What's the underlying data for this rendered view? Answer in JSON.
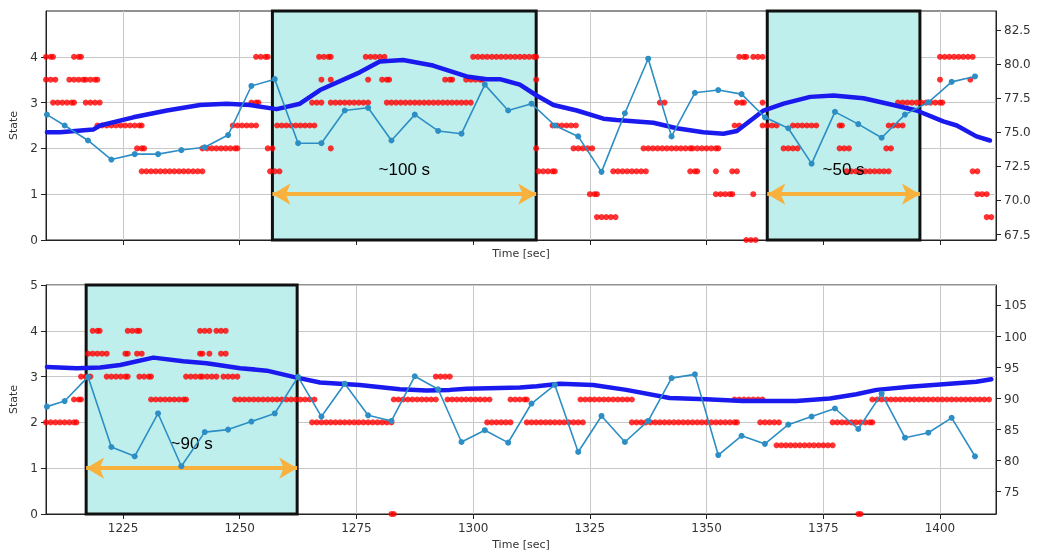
{
  "chart_data": [
    {
      "type": "scatter",
      "xlabel": "Time [sec]",
      "ylabel": "State",
      "xlim": [
        1208.5,
        1412
      ],
      "xticks": [
        1225,
        1250,
        1275,
        1300,
        1325,
        1350,
        1375,
        1400
      ],
      "ylim": [
        0,
        5
      ],
      "yticks": [
        0,
        1,
        2,
        3,
        4
      ],
      "y2lim": [
        67.1,
        83.9
      ],
      "y2ticks": [
        67.5,
        {
          "value": 70,
          "label": "70.0"
        },
        72.5,
        {
          "value": 75,
          "label": "75.0"
        },
        77.5,
        {
          "value": 80,
          "label": "80.0"
        },
        82.5
      ],
      "tick_labels": "y",
      "grid": true,
      "bands": [
        {
          "axis": "x",
          "from": 1257,
          "to": 1313.5,
          "color": "#bfefec"
        },
        {
          "axis": "x",
          "from": 1363,
          "to": 1395.7,
          "color": "#bfefec"
        }
      ],
      "annotations": [
        "~100 s",
        "~50 s"
      ],
      "series": [
        {
          "type": "scatter",
          "color": "#ff0000",
          "marker": "circle",
          "x": [
            1208.5,
            1209.5,
            1210,
            1214.5,
            1215.5,
            1216,
            1253.5,
            1254.5,
            1255.5,
            1256,
            1267,
            1268,
            1269,
            1269.5,
            1277,
            1278,
            1279,
            1280,
            1281,
            1300,
            1301,
            1302,
            1303,
            1304,
            1305,
            1306,
            1307,
            1308,
            1309,
            1310,
            1311,
            1312,
            1313,
            1313.5,
            1357,
            1358,
            1358.5,
            1360,
            1361,
            1362,
            1400,
            1401,
            1402,
            1403,
            1404,
            1405,
            1406,
            1407,
            1208.5,
            1209.5,
            1210.5,
            1213.5,
            1214.5,
            1215.5,
            1216.5,
            1217,
            1218,
            1219,
            1219.5,
            1267.5,
            1269.5,
            1277.5,
            1280.5,
            1281.5,
            1282,
            1294,
            1295,
            1295.5,
            1298.5,
            1299.5,
            1300.5,
            1301.5,
            1302,
            1313.5,
            1400,
            1406.5,
            1210,
            1211,
            1212,
            1213,
            1214,
            1214.5,
            1217,
            1218,
            1219,
            1220,
            1252.5,
            1253.5,
            1254,
            1265.5,
            1266.5,
            1267.5,
            1269.5,
            1270.5,
            1271.5,
            1272.5,
            1273.5,
            1274.5,
            1275.5,
            1276.5,
            1277.5,
            1281.5,
            1282.5,
            1283.5,
            1284.5,
            1285.5,
            1286.5,
            1287.5,
            1288.5,
            1289.5,
            1290.5,
            1291.5,
            1292.5,
            1293.5,
            1294.5,
            1295.5,
            1296.5,
            1297.5,
            1298.5,
            1299.5,
            1340,
            1341,
            1356.5,
            1357.5,
            1358,
            1362,
            1391,
            1392,
            1393,
            1394,
            1395,
            1396,
            1397,
            1398,
            1399,
            1400,
            1400.5,
            1219.5,
            1220.5,
            1221.5,
            1222.5,
            1223.5,
            1224.5,
            1225.5,
            1226.5,
            1227.5,
            1228.5,
            1229,
            1248.5,
            1249.5,
            1250.5,
            1251.5,
            1252.5,
            1253.5,
            1258,
            1259,
            1260,
            1261,
            1262,
            1263,
            1264,
            1265,
            1266,
            1317,
            1318,
            1319,
            1320,
            1321,
            1322,
            1356,
            1357,
            1362,
            1363,
            1364,
            1365,
            1368.5,
            1369.5,
            1370.5,
            1371.5,
            1372.5,
            1373.5,
            1378.5,
            1379,
            1389,
            1390,
            1391,
            1392,
            1228,
            1229,
            1229.5,
            1242,
            1243,
            1244,
            1245,
            1246,
            1247,
            1248,
            1249,
            1249.5,
            1256,
            1257,
            1269.5,
            1313.5,
            1321.5,
            1322.5,
            1323.5,
            1324.5,
            1325.5,
            1336.5,
            1337.5,
            1338.5,
            1339.5,
            1340.5,
            1341.5,
            1342.5,
            1343.5,
            1344.5,
            1345.5,
            1346.5,
            1347,
            1348,
            1349,
            1350,
            1351,
            1352,
            1352.5,
            1366.5,
            1367.5,
            1368.5,
            1369.5,
            1378.5,
            1379.5,
            1380.5,
            1388.5,
            1389.5,
            1229,
            1230,
            1231,
            1232,
            1233,
            1234,
            1235,
            1236,
            1237,
            1238,
            1239,
            1240,
            1241,
            1242,
            1256.5,
            1257.5,
            1258.5,
            1314,
            1315,
            1316,
            1317,
            1317.5,
            1330,
            1331,
            1332,
            1333,
            1334,
            1335,
            1336,
            1337,
            1346.5,
            1347.5,
            1348,
            1352,
            1355.5,
            1356.5,
            1380,
            1381,
            1382,
            1383,
            1384,
            1385,
            1386,
            1387,
            1388,
            1389,
            1407,
            1408,
            1325,
            1326,
            1326.5,
            1352,
            1353,
            1354,
            1355,
            1355.5,
            1360,
            1408,
            1409,
            1410,
            1326.5,
            1327.5,
            1328.5,
            1329.5,
            1330.5,
            1410,
            1411,
            1358.5,
            1359.5,
            1360.5
          ],
          "values": [
            4,
            4,
            4,
            4,
            4,
            4,
            4,
            4,
            4,
            4,
            4,
            4,
            4,
            4,
            4,
            4,
            4,
            4,
            4,
            4,
            4,
            4,
            4,
            4,
            4,
            4,
            4,
            4,
            4,
            4,
            4,
            4,
            4,
            4,
            4,
            4,
            4,
            4,
            4,
            4,
            4,
            4,
            4,
            4,
            4,
            4,
            4,
            4,
            3.5,
            3.5,
            3.5,
            3.5,
            3.5,
            3.5,
            3.5,
            3.5,
            3.5,
            3.5,
            3.5,
            3.5,
            3.5,
            3.5,
            3.5,
            3.5,
            3.5,
            3.5,
            3.5,
            3.5,
            3.5,
            3.5,
            3.5,
            3.5,
            3.5,
            3.5,
            3.5,
            3.5,
            3,
            3,
            3,
            3,
            3,
            3,
            3,
            3,
            3,
            3,
            3,
            3,
            3,
            3,
            3,
            3,
            3,
            3,
            3,
            3,
            3,
            3,
            3,
            3,
            3,
            3,
            3,
            3,
            3,
            3,
            3,
            3,
            3,
            3,
            3,
            3,
            3,
            3,
            3,
            3,
            3,
            3,
            3,
            3,
            3,
            3,
            3,
            3,
            3,
            3,
            3,
            3,
            3,
            3,
            3,
            3,
            3,
            3,
            3,
            3,
            3,
            2.5,
            2.5,
            2.5,
            2.5,
            2.5,
            2.5,
            2.5,
            2.5,
            2.5,
            2.5,
            2.5,
            2.5,
            2.5,
            2.5,
            2.5,
            2.5,
            2.5,
            2.5,
            2.5,
            2.5,
            2.5,
            2.5,
            2.5,
            2.5,
            2.5,
            2.5,
            2.5,
            2.5,
            2.5,
            2.5,
            2.5,
            2.5,
            2.5,
            2.5,
            2.5,
            2.5,
            2.5,
            2.5,
            2.5,
            2.5,
            2.5,
            2.5,
            2.5,
            2.5,
            2.5,
            2.5,
            2.5,
            2.5,
            2.5,
            2.5,
            2,
            2,
            2,
            2,
            2,
            2,
            2,
            2,
            2,
            2,
            2,
            2,
            2,
            2,
            2,
            2,
            2,
            2,
            2,
            2,
            2,
            2,
            2,
            2,
            2,
            2,
            2,
            2,
            2,
            2,
            2,
            2,
            2,
            2,
            2,
            2,
            2,
            2,
            2,
            2,
            2,
            2,
            2,
            2,
            2,
            2,
            2,
            2,
            1.5,
            1.5,
            1.5,
            1.5,
            1.5,
            1.5,
            1.5,
            1.5,
            1.5,
            1.5,
            1.5,
            1.5,
            1.5,
            1.5,
            1.5,
            1.5,
            1.5,
            1.5,
            1.5,
            1.5,
            1.5,
            1.5,
            1.5,
            1.5,
            1.5,
            1.5,
            1.5,
            1.5,
            1.5,
            1.5,
            1.5,
            1.5,
            1.5,
            1.5,
            1.5,
            1.5,
            1.5,
            1.5,
            1.5,
            1.5,
            1.5,
            1.5,
            1.5,
            1.5,
            1.5,
            1.5,
            1.5,
            1.5,
            1,
            1,
            1,
            1,
            1,
            1,
            1,
            1,
            1,
            1,
            1,
            1,
            0.5,
            0.5,
            0.5,
            0.5,
            0.5,
            0.5,
            0.5,
            0,
            0,
            0
          ]
        },
        {
          "type": "line",
          "color": "#1a1aee",
          "axis": "y2",
          "marker": "none",
          "x": [
            1208.7,
            1211.5,
            1218.6,
            1220.1,
            1227.2,
            1234.4,
            1241.5,
            1247.2,
            1252.2,
            1257.9,
            1262.9,
            1267.2,
            1275.7,
            1280,
            1285,
            1291.4,
            1298.6,
            1302.9,
            1305.7,
            1310,
            1313.6,
            1317.2,
            1322.2,
            1327.9,
            1330.7,
            1338.6,
            1343.6,
            1349.3,
            1353.6,
            1356.5,
            1362.2,
            1366.5,
            1372.2,
            1377.2,
            1383.6,
            1390,
            1395,
            1400.7,
            1403.6,
            1407.8,
            1410.7
          ],
          "values": [
            75.0,
            75.0,
            75.2,
            75.5,
            76.1,
            76.6,
            77.0,
            77.1,
            77.0,
            76.7,
            77.1,
            78.1,
            79.4,
            80.2,
            80.3,
            79.9,
            79.1,
            78.9,
            78.9,
            78.5,
            77.7,
            77.0,
            76.6,
            76.0,
            75.9,
            75.7,
            75.3,
            75.0,
            74.9,
            75.1,
            76.6,
            77.1,
            77.6,
            77.7,
            77.5,
            77.0,
            76.6,
            75.8,
            75.5,
            74.7,
            74.4
          ]
        },
        {
          "type": "line",
          "color": "#2c8ec4",
          "axis": "y2",
          "marker": "circle",
          "x": [
            1208.7,
            1212.5,
            1217.5,
            1222.5,
            1227.5,
            1232.5,
            1237.5,
            1242.5,
            1247.5,
            1252.5,
            1257.5,
            1262.5,
            1267.5,
            1272.5,
            1277.5,
            1282.5,
            1287.5,
            1292.5,
            1297.5,
            1302.5,
            1307.5,
            1312.5,
            1317.5,
            1322.5,
            1327.5,
            1332.5,
            1337.5,
            1342.5,
            1347.5,
            1352.5,
            1357.5,
            1362.5,
            1367.5,
            1372.5,
            1377.5,
            1382.5,
            1387.5,
            1392.5,
            1397.5,
            1402.5,
            1407.5
          ],
          "values": [
            76.3,
            75.5,
            74.4,
            73.0,
            73.4,
            73.4,
            73.7,
            73.9,
            74.8,
            78.4,
            78.9,
            74.2,
            74.2,
            76.6,
            76.8,
            74.4,
            76.3,
            75.1,
            74.9,
            78.5,
            76.6,
            77.1,
            75.5,
            74.7,
            72.1,
            76.4,
            80.4,
            74.7,
            77.9,
            78.1,
            77.8,
            76.1,
            75.3,
            72.7,
            76.5,
            75.6,
            74.6,
            76.3,
            77.2,
            78.7,
            79.1
          ]
        }
      ]
    },
    {
      "type": "scatter",
      "xlabel": "Time [sec]",
      "ylabel": "State",
      "xlim": [
        1208.5,
        1412
      ],
      "xticks": [
        1225,
        1250,
        1275,
        1300,
        1325,
        1350,
        1375,
        1400
      ],
      "ylim": [
        0,
        5
      ],
      "yticks": [
        0,
        1,
        2,
        3,
        4,
        5
      ],
      "y2lim": [
        71.4,
        108.3
      ],
      "y2ticks": [
        75,
        80,
        85,
        90,
        95,
        100,
        105
      ],
      "grid": true,
      "bands": [
        {
          "axis": "x",
          "from": 1217.1,
          "to": 1262.3,
          "color": "#bfefec"
        }
      ],
      "annotations": [
        "~90 s"
      ],
      "series": [
        {
          "type": "scatter",
          "color": "#ff0000",
          "marker": "circle",
          "x": [
            1208.5,
            1209.5,
            1210.5,
            1211.5,
            1212.5,
            1213.5,
            1214.5,
            1215,
            1265.5,
            1266.5,
            1267.5,
            1268.5,
            1269.5,
            1270.5,
            1271.5,
            1272.5,
            1273.5,
            1274.5,
            1275.5,
            1276.5,
            1277.5,
            1278.5,
            1279.5,
            1280.5,
            1281.5,
            1282.5,
            1303,
            1304,
            1305,
            1306,
            1307,
            1308,
            1311.5,
            1312.5,
            1313.5,
            1314.5,
            1315.5,
            1316.5,
            1317.5,
            1318.5,
            1319.5,
            1320.5,
            1321.5,
            1322.5,
            1323.5,
            1334,
            1335,
            1336,
            1337,
            1338,
            1339,
            1340,
            1341,
            1342,
            1343,
            1344,
            1345,
            1346,
            1347,
            1348,
            1349,
            1350,
            1351,
            1352,
            1353,
            1354,
            1355,
            1356,
            1356.5,
            1361.5,
            1362.5,
            1363.5,
            1364.5,
            1365.5,
            1377,
            1378,
            1379,
            1380,
            1381,
            1382,
            1383,
            1384,
            1385,
            1385.5,
            1214.5,
            1215.5,
            1216,
            1231,
            1232,
            1233,
            1234,
            1235,
            1236,
            1237,
            1238,
            1238.5,
            1249,
            1250,
            1251,
            1252,
            1253,
            1254,
            1255,
            1256,
            1257,
            1258,
            1259,
            1260,
            1261,
            1262,
            1263,
            1264,
            1265,
            1266,
            1283,
            1284,
            1285,
            1286,
            1287,
            1288,
            1289,
            1290,
            1291,
            1292,
            1294.5,
            1295.5,
            1296.5,
            1297.5,
            1298.5,
            1299.5,
            1300.5,
            1301.5,
            1302.5,
            1303.5,
            1308,
            1309,
            1310,
            1311,
            1311.5,
            1323,
            1324,
            1325,
            1326,
            1327,
            1328,
            1329,
            1330,
            1331,
            1332,
            1333,
            1334,
            1356,
            1357,
            1358,
            1359,
            1360,
            1361,
            1362,
            1385.5,
            1386.5,
            1387.5,
            1388.5,
            1389.5,
            1390.5,
            1391.5,
            1392.5,
            1393.5,
            1394.5,
            1395.5,
            1396.5,
            1397.5,
            1398.5,
            1399.5,
            1400.5,
            1401.5,
            1402.5,
            1403.5,
            1404.5,
            1405.5,
            1406.5,
            1407.5,
            1408.5,
            1409.5,
            1410.5,
            1216,
            1217,
            1218,
            1221.5,
            1222.5,
            1223.5,
            1224.5,
            1225.5,
            1226,
            1228.5,
            1229.5,
            1230.5,
            1231,
            1238.5,
            1239.5,
            1240.5,
            1241.5,
            1242,
            1243,
            1244,
            1245,
            1246.5,
            1247.5,
            1248.5,
            1249.5,
            1292,
            1293,
            1294,
            1295,
            1217.5,
            1218.5,
            1219.5,
            1220.5,
            1221.5,
            1225.5,
            1226,
            1228,
            1229,
            1241.5,
            1242,
            1243.5,
            1246,
            1247,
            1218.5,
            1219.5,
            1220,
            1226,
            1227,
            1228,
            1228.5,
            1241.5,
            1242.5,
            1243.5,
            1245,
            1246,
            1247,
            1365,
            1366,
            1367,
            1368,
            1369,
            1370,
            1371,
            1372,
            1373,
            1374,
            1375,
            1376,
            1377,
            1282.5,
            1283,
            1382.5,
            1383
          ],
          "values": [
            2,
            2,
            2,
            2,
            2,
            2,
            2,
            2,
            2,
            2,
            2,
            2,
            2,
            2,
            2,
            2,
            2,
            2,
            2,
            2,
            2,
            2,
            2,
            2,
            2,
            2,
            2,
            2,
            2,
            2,
            2,
            2,
            2,
            2,
            2,
            2,
            2,
            2,
            2,
            2,
            2,
            2,
            2,
            2,
            2,
            2,
            2,
            2,
            2,
            2,
            2,
            2,
            2,
            2,
            2,
            2,
            2,
            2,
            2,
            2,
            2,
            2,
            2,
            2,
            2,
            2,
            2,
            2,
            2,
            2,
            2,
            2,
            2,
            2,
            2,
            2,
            2,
            2,
            2,
            2,
            2,
            2,
            2,
            2,
            2.5,
            2.5,
            2.5,
            2.5,
            2.5,
            2.5,
            2.5,
            2.5,
            2.5,
            2.5,
            2.5,
            2.5,
            2.5,
            2.5,
            2.5,
            2.5,
            2.5,
            2.5,
            2.5,
            2.5,
            2.5,
            2.5,
            2.5,
            2.5,
            2.5,
            2.5,
            2.5,
            2.5,
            2.5,
            2.5,
            2.5,
            2.5,
            2.5,
            2.5,
            2.5,
            2.5,
            2.5,
            2.5,
            2.5,
            2.5,
            2.5,
            2.5,
            2.5,
            2.5,
            2.5,
            2.5,
            2.5,
            2.5,
            2.5,
            2.5,
            2.5,
            2.5,
            2.5,
            2.5,
            2.5,
            2.5,
            2.5,
            2.5,
            2.5,
            2.5,
            2.5,
            2.5,
            2.5,
            2.5,
            2.5,
            2.5,
            2.5,
            2.5,
            2.5,
            2.5,
            2.5,
            2.5,
            2.5,
            2.5,
            2.5,
            2.5,
            2.5,
            2.5,
            2.5,
            2.5,
            2.5,
            2.5,
            2.5,
            2.5,
            2.5,
            2.5,
            2.5,
            2.5,
            2.5,
            2.5,
            2.5,
            2.5,
            2.5,
            2.5,
            2.5,
            2.5,
            2.5,
            2.5,
            2.5,
            2.5,
            3,
            3,
            3,
            3,
            3,
            3,
            3,
            3,
            3,
            3,
            3,
            3,
            3,
            3,
            3,
            3,
            3,
            3,
            3,
            3,
            3,
            3,
            3,
            3,
            3,
            3,
            3,
            3,
            3,
            3.5,
            3.5,
            3.5,
            3.5,
            3.5,
            3.5,
            3.5,
            3.5,
            3.5,
            3.5,
            3.5,
            3.5,
            3.5,
            3.5,
            4,
            4,
            4,
            4,
            4,
            4,
            4,
            4,
            4,
            4,
            4,
            4,
            4,
            1.5,
            1.5,
            1.5,
            1.5,
            1.5,
            1.5,
            1.5,
            1.5,
            1.5,
            1.5,
            1.5,
            1.5,
            1.5,
            0,
            0,
            0,
            0
          ]
        },
        {
          "type": "line",
          "color": "#1a1aee",
          "axis": "y2",
          "marker": "none",
          "x": [
            1208.7,
            1215.1,
            1220.1,
            1224.4,
            1231.5,
            1237.9,
            1242.9,
            1250.1,
            1255.8,
            1261.5,
            1267.2,
            1275.7,
            1284.3,
            1290,
            1295,
            1298.6,
            1310,
            1313.6,
            1318.6,
            1325.7,
            1332.8,
            1342.1,
            1349.9,
            1357.8,
            1369.2,
            1376.4,
            1382.1,
            1386.4,
            1393.5,
            1400.7,
            1407.8,
            1411
          ],
          "values": [
            95.1,
            94.9,
            95.0,
            95.4,
            96.6,
            96.0,
            95.7,
            94.9,
            94.5,
            93.5,
            92.6,
            92.2,
            91.5,
            91.3,
            91.4,
            91.6,
            91.8,
            92.0,
            92.4,
            92.2,
            91.4,
            90.1,
            89.9,
            89.6,
            89.6,
            90.0,
            90.7,
            91.4,
            91.9,
            92.3,
            92.7,
            93.1
          ]
        },
        {
          "type": "line",
          "color": "#2c8ec4",
          "axis": "y2",
          "marker": "circle",
          "x": [
            1208.7,
            1212.5,
            1217.5,
            1222.5,
            1227.5,
            1232.5,
            1237.5,
            1242.5,
            1247.5,
            1252.5,
            1257.5,
            1262.5,
            1267.5,
            1272.5,
            1277.5,
            1282.5,
            1287.5,
            1292.5,
            1297.5,
            1302.5,
            1307.5,
            1312.5,
            1317.5,
            1322.5,
            1327.5,
            1332.5,
            1337.5,
            1342.5,
            1347.5,
            1352.5,
            1357.5,
            1362.5,
            1367.5,
            1372.5,
            1377.5,
            1382.5,
            1387.5,
            1392.5,
            1397.5,
            1402.5,
            1407.5
          ],
          "values": [
            88.7,
            89.6,
            93.5,
            82.2,
            80.7,
            87.6,
            79.1,
            84.6,
            85.0,
            86.3,
            87.6,
            93.5,
            87.1,
            92.4,
            87.3,
            86.4,
            93.6,
            91.5,
            83.0,
            84.9,
            82.9,
            89.2,
            92.2,
            81.4,
            87.2,
            83.0,
            86.4,
            93.3,
            93.9,
            80.9,
            84.0,
            82.7,
            85.8,
            87.1,
            88.4,
            85.1,
            90.8,
            83.7,
            84.5,
            86.9,
            80.7
          ]
        }
      ]
    }
  ]
}
